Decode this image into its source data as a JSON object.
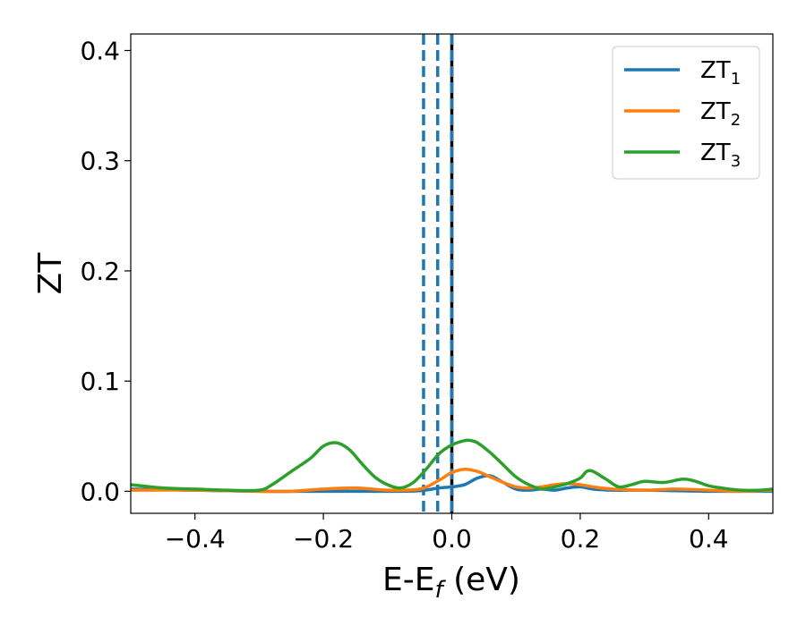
{
  "chart_data": {
    "type": "line",
    "xlabel": {
      "base": "E-E",
      "sub": "f",
      "unit": " (eV)"
    },
    "ylabel": "ZT",
    "xlim": [
      -0.5,
      0.5
    ],
    "ylim": [
      -0.02,
      0.415
    ],
    "xticks": [
      -0.4,
      -0.2,
      0.0,
      0.2,
      0.4
    ],
    "xtick_labels": [
      "−0.4",
      "−0.2",
      "0.0",
      "0.2",
      "0.4"
    ],
    "yticks": [
      0.0,
      0.1,
      0.2,
      0.3,
      0.4
    ],
    "ytick_labels": [
      "0.0",
      "0.1",
      "0.2",
      "0.3",
      "0.4"
    ],
    "grid": false,
    "legend_position": "top-right",
    "vertical_lines": [
      {
        "x": -0.044,
        "style": "dashed",
        "color": "#1f77b4"
      },
      {
        "x": -0.022,
        "style": "dashed",
        "color": "#1f77b4"
      },
      {
        "x": 0.0,
        "style": "dashed-dual",
        "color": "#1f77b4",
        "secondary_color": "#000000"
      }
    ],
    "series": [
      {
        "name": "ZT",
        "sub": "1",
        "color": "#1f77b4",
        "x": [
          -0.5,
          -0.4,
          -0.3,
          -0.2,
          -0.1,
          -0.05,
          -0.02,
          0.0,
          0.02,
          0.04,
          0.06,
          0.08,
          0.1,
          0.12,
          0.14,
          0.16,
          0.18,
          0.2,
          0.22,
          0.25,
          0.3,
          0.35,
          0.4,
          0.45,
          0.5
        ],
        "y": [
          0.002,
          0.001,
          0.0,
          0.0,
          0.0,
          0.0005,
          0.003,
          0.004,
          0.006,
          0.012,
          0.014,
          0.008,
          0.002,
          0.001,
          0.002,
          0.001,
          0.003,
          0.004,
          0.002,
          0.001,
          0.001,
          0.0005,
          0.0,
          0.0,
          0.0
        ]
      },
      {
        "name": "ZT",
        "sub": "2",
        "color": "#ff7f0e",
        "x": [
          -0.5,
          -0.4,
          -0.3,
          -0.25,
          -0.2,
          -0.15,
          -0.1,
          -0.05,
          -0.02,
          0.0,
          0.02,
          0.04,
          0.06,
          0.08,
          0.1,
          0.12,
          0.14,
          0.16,
          0.18,
          0.2,
          0.22,
          0.25,
          0.3,
          0.35,
          0.4,
          0.45,
          0.5
        ],
        "y": [
          0.001,
          0.001,
          0.0,
          0.0,
          0.002,
          0.003,
          0.001,
          0.002,
          0.01,
          0.017,
          0.02,
          0.018,
          0.013,
          0.008,
          0.004,
          0.003,
          0.004,
          0.006,
          0.007,
          0.006,
          0.004,
          0.002,
          0.001,
          0.002,
          0.001,
          0.0,
          0.001
        ]
      },
      {
        "name": "ZT",
        "sub": "3",
        "color": "#2ca02c",
        "x": [
          -0.5,
          -0.45,
          -0.4,
          -0.35,
          -0.3,
          -0.28,
          -0.25,
          -0.22,
          -0.2,
          -0.18,
          -0.16,
          -0.14,
          -0.12,
          -0.1,
          -0.08,
          -0.06,
          -0.04,
          -0.02,
          0.0,
          0.02,
          0.03,
          0.04,
          0.06,
          0.08,
          0.1,
          0.12,
          0.14,
          0.16,
          0.18,
          0.2,
          0.21,
          0.22,
          0.24,
          0.26,
          0.28,
          0.3,
          0.33,
          0.36,
          0.38,
          0.4,
          0.42,
          0.45,
          0.48,
          0.5
        ],
        "y": [
          0.006,
          0.003,
          0.002,
          0.001,
          0.001,
          0.006,
          0.018,
          0.03,
          0.041,
          0.044,
          0.038,
          0.025,
          0.013,
          0.006,
          0.003,
          0.008,
          0.02,
          0.034,
          0.042,
          0.046,
          0.046,
          0.044,
          0.035,
          0.024,
          0.013,
          0.006,
          0.002,
          0.004,
          0.007,
          0.012,
          0.018,
          0.018,
          0.011,
          0.004,
          0.006,
          0.009,
          0.008,
          0.011,
          0.009,
          0.005,
          0.003,
          0.001,
          0.001,
          0.002
        ]
      }
    ]
  }
}
